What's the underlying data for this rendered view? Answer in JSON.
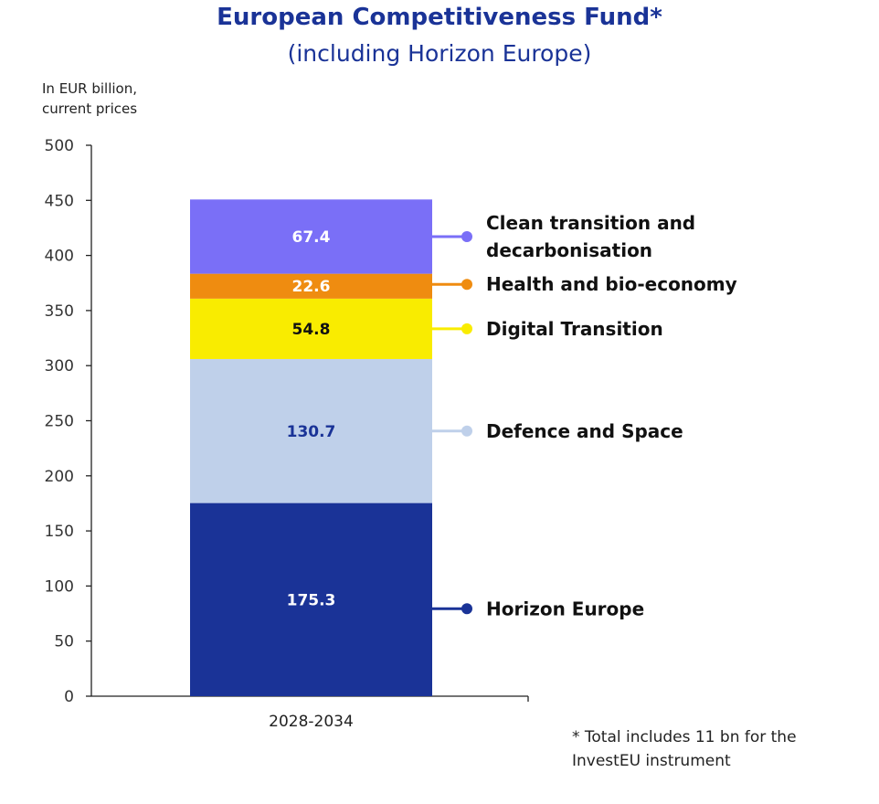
{
  "title": "European Competitiveness Fund*",
  "subtitle": "(including Horizon Europe)",
  "unit_label": [
    "In EUR billion,",
    "current prices"
  ],
  "footnote": [
    "* Total includes 11 bn for the",
    "InvestEU instrument"
  ],
  "chart_data": {
    "type": "bar",
    "stacked": true,
    "title": "European Competitiveness Fund*",
    "subtitle": "(including Horizon Europe)",
    "ylabel": "In EUR billion, current prices",
    "ylim": [
      0,
      500
    ],
    "yticks": [
      0,
      50,
      100,
      150,
      200,
      250,
      300,
      350,
      400,
      450,
      500
    ],
    "categories": [
      "2028-2034"
    ],
    "series": [
      {
        "name": "Horizon Europe",
        "values": [
          175.3
        ],
        "label": "175.3",
        "color": "#1a3397",
        "label_color": "#ffffff"
      },
      {
        "name": "Defence and Space",
        "values": [
          130.7
        ],
        "label": "130.7",
        "color": "#bfd0ea",
        "label_color": "#1a3397"
      },
      {
        "name": "Digital Transition",
        "values": [
          54.8
        ],
        "label": "54.8",
        "color": "#f9ec00",
        "label_color": "#111111"
      },
      {
        "name": "Health and bio-economy",
        "values": [
          22.6
        ],
        "label": "22.6",
        "color": "#ef8c10",
        "label_color": "#ffffff"
      },
      {
        "name": "Clean transition and decarbonisation",
        "values": [
          67.4
        ],
        "label": "67.4",
        "color": "#7a6ff7",
        "label_color": "#ffffff"
      }
    ],
    "legend": [
      {
        "lines": [
          "Horizon Europe"
        ],
        "color": "#1a3397"
      },
      {
        "lines": [
          "Defence and Space"
        ],
        "color": "#bfd0ea"
      },
      {
        "lines": [
          "Digital Transition"
        ],
        "color": "#f9ec00"
      },
      {
        "lines": [
          "Health and bio-economy"
        ],
        "color": "#ef8c10"
      },
      {
        "lines": [
          "Clean transition and",
          "decarbonisation"
        ],
        "color": "#7a6ff7"
      }
    ],
    "legend_position": "right"
  }
}
